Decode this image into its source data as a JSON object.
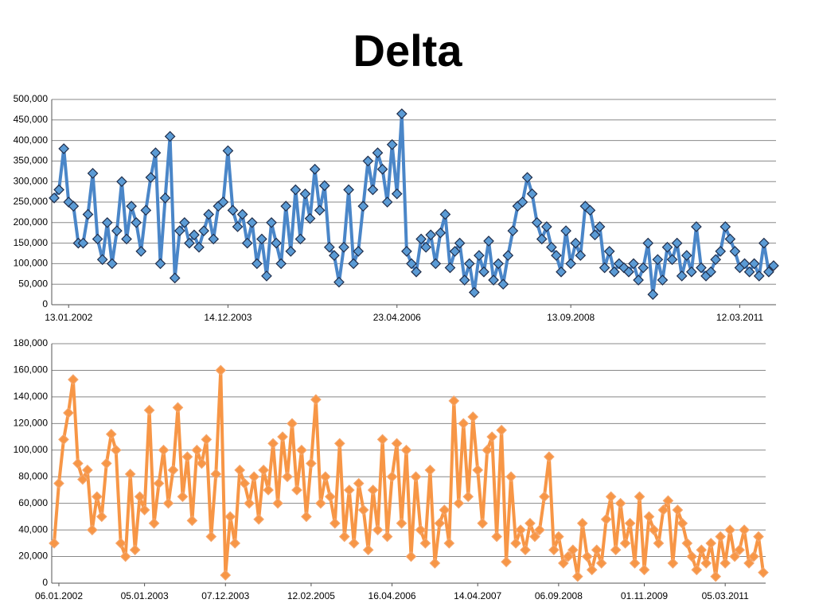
{
  "title": "Delta",
  "chart_data": [
    {
      "type": "line",
      "categories": [
        null,
        null,
        null,
        "13.01.2002",
        null,
        null,
        null,
        null,
        null,
        null,
        null,
        null,
        null,
        null,
        null,
        null,
        null,
        null,
        null,
        null,
        null,
        null,
        null,
        null,
        null,
        null,
        null,
        null,
        null,
        null,
        null,
        null,
        null,
        null,
        null,
        null,
        "14.12.2003",
        null,
        null,
        null,
        null,
        null,
        null,
        null,
        null,
        null,
        null,
        null,
        null,
        null,
        null,
        null,
        null,
        null,
        null,
        null,
        null,
        null,
        null,
        null,
        null,
        null,
        null,
        null,
        null,
        null,
        null,
        null,
        null,
        null,
        null,
        "23.04.2006",
        null,
        null,
        null,
        null,
        null,
        null,
        null,
        null,
        null,
        null,
        null,
        null,
        null,
        null,
        null,
        null,
        null,
        null,
        null,
        null,
        null,
        null,
        null,
        null,
        null,
        null,
        null,
        null,
        null,
        null,
        null,
        null,
        null,
        null,
        null,
        "13.09.2008",
        null,
        null,
        null,
        null,
        null,
        null,
        null,
        null,
        null,
        null,
        null,
        null,
        null,
        null,
        null,
        null,
        null,
        null,
        null,
        null,
        null,
        null,
        null,
        null,
        null,
        null,
        null,
        null,
        null,
        null,
        null,
        null,
        null,
        null,
        "12.03.2011",
        null,
        null,
        null,
        null,
        null,
        null,
        null
      ],
      "series": [
        {
          "color": "#4a86c8",
          "marker_color": "#5b9bd5",
          "values": [
            260000,
            280000,
            380000,
            250000,
            240000,
            150000,
            150000,
            220000,
            320000,
            160000,
            110000,
            200000,
            100000,
            180000,
            300000,
            160000,
            240000,
            200000,
            130000,
            230000,
            310000,
            370000,
            100000,
            260000,
            410000,
            65000,
            180000,
            200000,
            150000,
            170000,
            140000,
            180000,
            220000,
            160000,
            240000,
            250000,
            375000,
            230000,
            190000,
            220000,
            150000,
            200000,
            100000,
            160000,
            70000,
            200000,
            150000,
            100000,
            240000,
            130000,
            280000,
            160000,
            270000,
            210000,
            330000,
            230000,
            290000,
            140000,
            120000,
            55000,
            140000,
            280000,
            100000,
            130000,
            240000,
            350000,
            280000,
            370000,
            330000,
            250000,
            390000,
            270000,
            465000,
            130000,
            100000,
            80000,
            160000,
            140000,
            170000,
            100000,
            175000,
            220000,
            90000,
            130000,
            150000,
            60000,
            100000,
            30000,
            120000,
            80000,
            155000,
            60000,
            100000,
            50000,
            120000,
            180000,
            240000,
            250000,
            310000,
            270000,
            200000,
            160000,
            190000,
            140000,
            120000,
            80000,
            180000,
            100000,
            150000,
            120000,
            240000,
            230000,
            170000,
            190000,
            90000,
            130000,
            80000,
            100000,
            90000,
            80000,
            100000,
            60000,
            90000,
            150000,
            25000,
            110000,
            60000,
            140000,
            110000,
            150000,
            70000,
            120000,
            80000,
            190000,
            90000,
            70000,
            80000,
            110000,
            130000,
            190000,
            160000,
            130000,
            90000,
            100000,
            80000,
            100000,
            70000,
            150000,
            80000,
            95000
          ]
        }
      ],
      "ylim": [
        0,
        500000
      ],
      "yticks": [
        0,
        {
          "value": 50000,
          "label": "50,000"
        },
        {
          "value": 100000,
          "label": "100,000"
        },
        {
          "value": 150000,
          "label": "150,000"
        },
        {
          "value": 200000,
          "label": "200,000"
        },
        {
          "value": 250000,
          "label": "250,000"
        },
        {
          "value": 300000,
          "label": "300,000"
        },
        {
          "value": 350000,
          "label": "350,000"
        },
        {
          "value": 400000,
          "label": "400,000"
        },
        {
          "value": 450000,
          "label": "450,000"
        },
        {
          "value": 500000,
          "label": "500,000"
        }
      ],
      "grid": true
    },
    {
      "type": "line",
      "categories": [
        null,
        "06.01.2002",
        null,
        null,
        null,
        null,
        null,
        null,
        null,
        null,
        null,
        null,
        null,
        null,
        null,
        null,
        null,
        null,
        null,
        "05.01.2003",
        null,
        null,
        null,
        null,
        null,
        null,
        null,
        null,
        null,
        null,
        null,
        null,
        null,
        null,
        null,
        null,
        "07.12.2003",
        null,
        null,
        null,
        null,
        null,
        null,
        null,
        null,
        null,
        null,
        null,
        null,
        null,
        null,
        null,
        null,
        null,
        "12.02.2005",
        null,
        null,
        null,
        null,
        null,
        null,
        null,
        null,
        null,
        null,
        null,
        null,
        null,
        null,
        null,
        null,
        "16.04.2006",
        null,
        null,
        null,
        null,
        null,
        null,
        null,
        null,
        null,
        null,
        null,
        null,
        null,
        null,
        null,
        null,
        null,
        "14.04.2007",
        null,
        null,
        null,
        null,
        null,
        null,
        null,
        null,
        null,
        null,
        null,
        null,
        null,
        null,
        null,
        null,
        "06.09.2008",
        null,
        null,
        null,
        null,
        null,
        null,
        null,
        null,
        null,
        null,
        null,
        null,
        null,
        null,
        null,
        null,
        null,
        "01.11.2009",
        null,
        null,
        null,
        null,
        null,
        null,
        null,
        null,
        null,
        null,
        null,
        null,
        null,
        null,
        null,
        null,
        "05.03.2011",
        null,
        null,
        null,
        null,
        null,
        null,
        null,
        null
      ],
      "series": [
        {
          "color": "#f79646",
          "marker_color": "#f79646",
          "values": [
            30000,
            75000,
            108000,
            128000,
            153000,
            90000,
            78000,
            85000,
            40000,
            65000,
            50000,
            90000,
            112000,
            100000,
            30000,
            20000,
            82000,
            25000,
            65000,
            55000,
            130000,
            45000,
            75000,
            100000,
            60000,
            85000,
            132000,
            65000,
            95000,
            47000,
            100000,
            90000,
            108000,
            35000,
            82000,
            160000,
            6000,
            50000,
            30000,
            85000,
            75000,
            60000,
            80000,
            48000,
            85000,
            70000,
            105000,
            60000,
            110000,
            80000,
            120000,
            70000,
            100000,
            50000,
            90000,
            138000,
            60000,
            80000,
            65000,
            45000,
            105000,
            35000,
            70000,
            30000,
            75000,
            55000,
            25000,
            70000,
            40000,
            108000,
            35000,
            80000,
            105000,
            45000,
            100000,
            20000,
            80000,
            40000,
            30000,
            85000,
            15000,
            45000,
            55000,
            30000,
            137000,
            60000,
            120000,
            65000,
            125000,
            85000,
            45000,
            100000,
            110000,
            35000,
            115000,
            16000,
            80000,
            30000,
            40000,
            25000,
            45000,
            35000,
            40000,
            65000,
            95000,
            25000,
            35000,
            15000,
            20000,
            25000,
            5000,
            45000,
            20000,
            10000,
            25000,
            15000,
            48000,
            65000,
            25000,
            60000,
            30000,
            45000,
            15000,
            65000,
            10000,
            50000,
            40000,
            30000,
            55000,
            62000,
            15000,
            55000,
            45000,
            30000,
            20000,
            10000,
            25000,
            15000,
            30000,
            5000,
            35000,
            15000,
            40000,
            20000,
            25000,
            40000,
            15000,
            20000,
            35000,
            8000
          ]
        }
      ],
      "ylim": [
        0,
        180000
      ],
      "yticks": [
        0,
        {
          "value": 20000,
          "label": "20,000"
        },
        {
          "value": 40000,
          "label": "40,000"
        },
        {
          "value": 60000,
          "label": "60,000"
        },
        {
          "value": 80000,
          "label": "80,000"
        },
        {
          "value": 100000,
          "label": "100,000"
        },
        {
          "value": 120000,
          "label": "120,000"
        },
        {
          "value": 140000,
          "label": "140,000"
        },
        {
          "value": 160000,
          "label": "160,000"
        },
        {
          "value": 180000,
          "label": "180,000"
        }
      ],
      "grid": true
    }
  ]
}
